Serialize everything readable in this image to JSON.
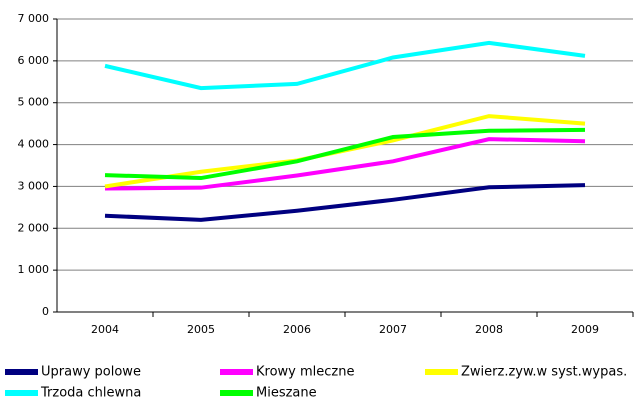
{
  "chart_data": {
    "type": "line",
    "categories": [
      "2004",
      "2005",
      "2006",
      "2007",
      "2008",
      "2009"
    ],
    "series": [
      {
        "name": "Uprawy polowe",
        "color": "#000080",
        "values": [
          2300,
          2200,
          2420,
          2680,
          2980,
          3030
        ]
      },
      {
        "name": "Krowy mleczne",
        "color": "#ff00ff",
        "values": [
          2950,
          2970,
          3260,
          3600,
          4130,
          4080
        ]
      },
      {
        "name": "Zwierz.zyw.w syst.wypas.",
        "color": "#ffff00",
        "values": [
          3000,
          3350,
          3620,
          4100,
          4680,
          4500
        ]
      },
      {
        "name": "Trzoda chlewna",
        "color": "#00ffff",
        "values": [
          5880,
          5350,
          5450,
          6080,
          6430,
          6120
        ]
      },
      {
        "name": "Mieszane",
        "color": "#00ff00",
        "values": [
          3270,
          3200,
          3600,
          4180,
          4330,
          4350
        ]
      }
    ],
    "ylim": [
      0,
      7000
    ],
    "yticks": [
      0,
      {
        "value": 1000,
        "label": "1 000"
      },
      {
        "value": 2000,
        "label": "2 000"
      },
      {
        "value": 3000,
        "label": "3 000"
      },
      {
        "value": 4000,
        "label": "4 000"
      },
      {
        "value": 5000,
        "label": "5 000"
      },
      {
        "value": 6000,
        "label": "6 000"
      },
      {
        "value": 7000,
        "label": "7 000"
      }
    ],
    "grid": true,
    "legend": "bottom"
  }
}
